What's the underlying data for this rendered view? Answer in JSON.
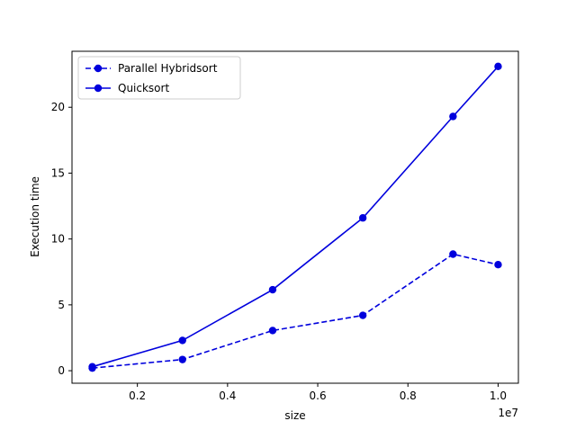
{
  "chart_data": {
    "type": "line",
    "x": [
      1000000,
      3000000,
      5000000,
      7000000,
      9000000,
      10000000
    ],
    "series": [
      {
        "name": "Parallel Hybridsort",
        "values": [
          0.2,
          0.85,
          3.05,
          4.2,
          8.85,
          8.05
        ],
        "line_style": "dashed",
        "marker": "circle",
        "color": "#0000dd"
      },
      {
        "name": "Quicksort",
        "values": [
          0.3,
          2.3,
          6.15,
          11.6,
          19.3,
          23.1
        ],
        "line_style": "solid",
        "marker": "circle",
        "color": "#0000dd"
      }
    ],
    "xlabel": "size",
    "ylabel": "Execution time",
    "x_offset_label": "1e7",
    "xlim": [
      550000,
      10450000
    ],
    "ylim": [
      -0.95,
      24.25
    ],
    "x_ticks": [
      2000000,
      4000000,
      6000000,
      8000000,
      10000000
    ],
    "x_tick_labels": [
      "0.2",
      "0.4",
      "0.6",
      "0.8",
      "1.0"
    ],
    "y_ticks": [
      0,
      5,
      10,
      15,
      20
    ],
    "y_tick_labels": [
      "0",
      "5",
      "10",
      "15",
      "20"
    ],
    "legend_placement": "top-left",
    "grid": false
  }
}
